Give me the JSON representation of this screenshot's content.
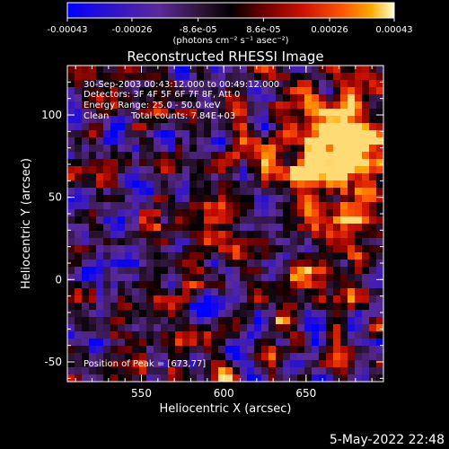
{
  "colorbar": {
    "tick_labels": [
      "-0.00043",
      "-0.00026",
      "-8.6e-05",
      "8.6e-05",
      "0.00026",
      "0.00043"
    ],
    "tick_values": [
      -0.00043,
      -0.00026,
      -8.6e-05,
      8.6e-05,
      0.00026,
      0.00043
    ],
    "range": [
      -0.00043,
      0.00043
    ],
    "unit_label": "(photons cm⁻² s⁻¹ asec⁻²)",
    "colors": [
      "#0000ff",
      "#3300cc",
      "#5a2a9a",
      "#2a1230",
      "#000000",
      "#6a0000",
      "#cc1100",
      "#ff5500",
      "#ffaa00",
      "#ffffcc"
    ]
  },
  "chart_data": {
    "type": "heatmap",
    "title": "Reconstructed RHESSI Image",
    "xlabel": "Heliocentric X (arcsec)",
    "ylabel": "Heliocentric Y (arcsec)",
    "xlim": [
      505,
      697
    ],
    "ylim": [
      -62,
      130
    ],
    "x_ticks": [
      550,
      600,
      650
    ],
    "y_ticks": [
      -50,
      0,
      50,
      100
    ],
    "annotations": {
      "time_range": "30-Sep-2003 00:43:12.000 to 00:49:12.000",
      "detectors": "Detectors: 3F 4F 5F 6F 7F 8F, Att 0",
      "energy_range": "Energy Range: 25.0 - 50.0 keV",
      "clean_label": "Clean",
      "total_counts": "Total counts: 7.84E+03",
      "peak_label": "Position of Peak = [673,77]"
    },
    "peak": [
      673,
      77
    ]
  },
  "footer": {
    "date": "5-May-2022 22:48"
  }
}
